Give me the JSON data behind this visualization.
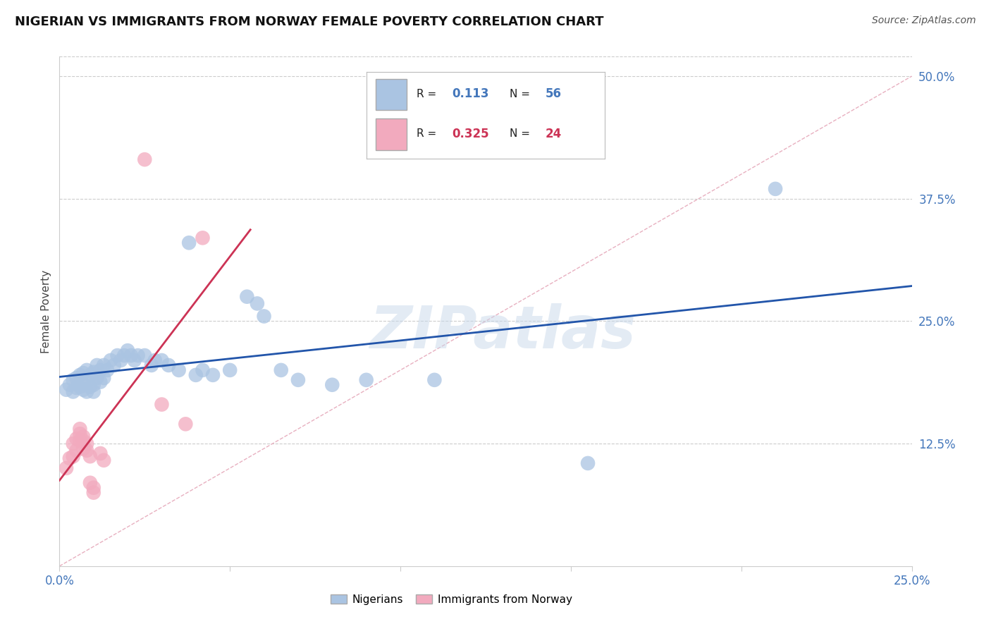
{
  "title": "NIGERIAN VS IMMIGRANTS FROM NORWAY FEMALE POVERTY CORRELATION CHART",
  "source": "Source: ZipAtlas.com",
  "ylabel": "Female Poverty",
  "xlim": [
    0.0,
    0.25
  ],
  "ylim": [
    0.0,
    0.52
  ],
  "ytick_positions": [
    0.125,
    0.25,
    0.375,
    0.5
  ],
  "ytick_labels": [
    "12.5%",
    "25.0%",
    "37.5%",
    "50.0%"
  ],
  "blue_R": "0.113",
  "blue_N": "56",
  "pink_R": "0.325",
  "pink_N": "24",
  "blue_color": "#aac4e2",
  "pink_color": "#f2aabe",
  "blue_line_color": "#2255aa",
  "pink_line_color": "#cc3355",
  "diagonal_color": "#e8b0c0",
  "blue_scatter": [
    [
      0.002,
      0.18
    ],
    [
      0.003,
      0.185
    ],
    [
      0.004,
      0.19
    ],
    [
      0.004,
      0.178
    ],
    [
      0.005,
      0.192
    ],
    [
      0.005,
      0.182
    ],
    [
      0.006,
      0.195
    ],
    [
      0.006,
      0.183
    ],
    [
      0.007,
      0.197
    ],
    [
      0.007,
      0.186
    ],
    [
      0.007,
      0.18
    ],
    [
      0.008,
      0.2
    ],
    [
      0.008,
      0.188
    ],
    [
      0.008,
      0.178
    ],
    [
      0.009,
      0.195
    ],
    [
      0.009,
      0.183
    ],
    [
      0.01,
      0.198
    ],
    [
      0.01,
      0.185
    ],
    [
      0.01,
      0.178
    ],
    [
      0.011,
      0.205
    ],
    [
      0.011,
      0.192
    ],
    [
      0.012,
      0.2
    ],
    [
      0.012,
      0.188
    ],
    [
      0.013,
      0.205
    ],
    [
      0.013,
      0.192
    ],
    [
      0.014,
      0.2
    ],
    [
      0.015,
      0.21
    ],
    [
      0.016,
      0.205
    ],
    [
      0.017,
      0.215
    ],
    [
      0.018,
      0.21
    ],
    [
      0.019,
      0.215
    ],
    [
      0.02,
      0.22
    ],
    [
      0.021,
      0.215
    ],
    [
      0.022,
      0.21
    ],
    [
      0.023,
      0.215
    ],
    [
      0.025,
      0.215
    ],
    [
      0.027,
      0.205
    ],
    [
      0.028,
      0.21
    ],
    [
      0.03,
      0.21
    ],
    [
      0.032,
      0.205
    ],
    [
      0.035,
      0.2
    ],
    [
      0.038,
      0.33
    ],
    [
      0.04,
      0.195
    ],
    [
      0.042,
      0.2
    ],
    [
      0.045,
      0.195
    ],
    [
      0.05,
      0.2
    ],
    [
      0.055,
      0.275
    ],
    [
      0.058,
      0.268
    ],
    [
      0.06,
      0.255
    ],
    [
      0.065,
      0.2
    ],
    [
      0.07,
      0.19
    ],
    [
      0.08,
      0.185
    ],
    [
      0.09,
      0.19
    ],
    [
      0.11,
      0.19
    ],
    [
      0.155,
      0.105
    ],
    [
      0.21,
      0.385
    ]
  ],
  "pink_scatter": [
    [
      0.002,
      0.1
    ],
    [
      0.003,
      0.11
    ],
    [
      0.004,
      0.112
    ],
    [
      0.004,
      0.125
    ],
    [
      0.005,
      0.118
    ],
    [
      0.005,
      0.13
    ],
    [
      0.006,
      0.128
    ],
    [
      0.006,
      0.135
    ],
    [
      0.006,
      0.14
    ],
    [
      0.007,
      0.132
    ],
    [
      0.007,
      0.128
    ],
    [
      0.007,
      0.12
    ],
    [
      0.008,
      0.125
    ],
    [
      0.008,
      0.118
    ],
    [
      0.009,
      0.112
    ],
    [
      0.009,
      0.085
    ],
    [
      0.01,
      0.08
    ],
    [
      0.01,
      0.075
    ],
    [
      0.012,
      0.115
    ],
    [
      0.013,
      0.108
    ],
    [
      0.025,
      0.415
    ],
    [
      0.03,
      0.165
    ],
    [
      0.037,
      0.145
    ],
    [
      0.042,
      0.335
    ]
  ],
  "watermark_text": "ZIPatlas",
  "background_color": "#ffffff",
  "grid_color": "#cccccc"
}
